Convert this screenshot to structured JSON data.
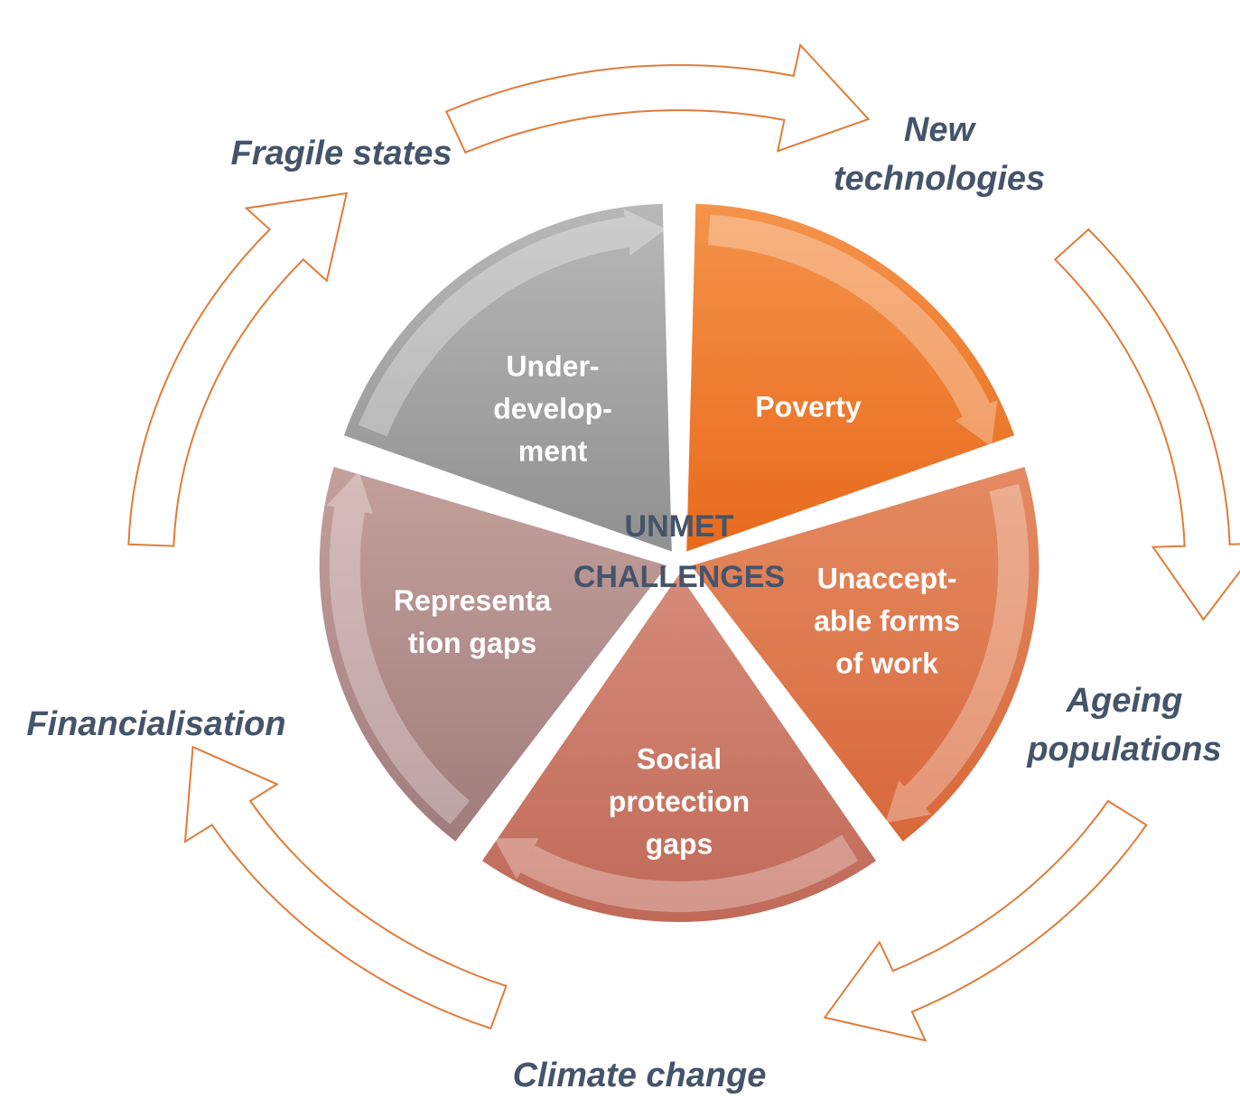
{
  "center": {
    "lines": [
      "UNMET",
      "CHALLENGES"
    ]
  },
  "segments": [
    {
      "lines": [
        "Poverty"
      ]
    },
    {
      "lines": [
        "Unaccept-",
        "able forms",
        "of work"
      ]
    },
    {
      "lines": [
        "Social",
        "protection",
        "gaps"
      ]
    },
    {
      "lines": [
        "Representa",
        "tion gaps"
      ]
    },
    {
      "lines": [
        "Under-",
        "develop-",
        "ment"
      ]
    }
  ],
  "outer_labels": [
    {
      "lines": [
        "New",
        "technologies"
      ]
    },
    {
      "lines": [
        "Ageing",
        "populations"
      ]
    },
    {
      "lines": [
        "Climate change"
      ]
    },
    {
      "lines": [
        "Financialisation"
      ]
    },
    {
      "lines": [
        "Fragile states"
      ]
    }
  ]
}
